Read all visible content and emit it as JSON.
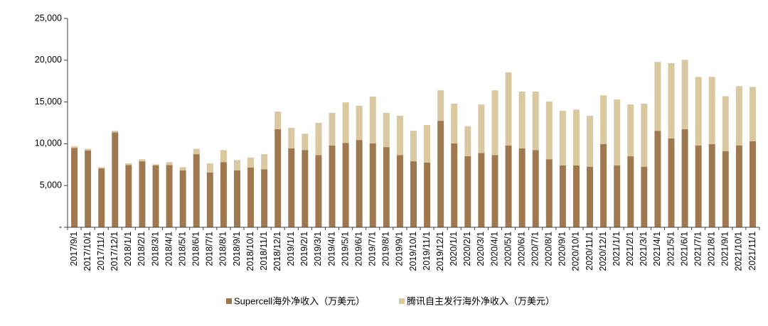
{
  "chart_data": {
    "type": "bar",
    "stacked": true,
    "categories": [
      "2017/9/1",
      "2017/10/1",
      "2017/11/1",
      "2017/12/1",
      "2018/1/1",
      "2018/2/1",
      "2018/3/1",
      "2018/4/1",
      "2018/5/1",
      "2018/6/1",
      "2018/7/1",
      "2018/8/1",
      "2018/9/1",
      "2018/10/1",
      "2018/11/1",
      "2018/12/1",
      "2019/1/1",
      "2019/2/1",
      "2019/3/1",
      "2019/4/1",
      "2019/5/1",
      "2019/6/1",
      "2019/7/1",
      "2019/8/1",
      "2019/9/1",
      "2019/10/1",
      "2019/11/1",
      "2019/12/1",
      "2020/1/1",
      "2020/2/1",
      "2020/3/1",
      "2020/4/1",
      "2020/5/1",
      "2020/6/1",
      "2020/7/1",
      "2020/8/1",
      "2020/9/1",
      "2020/10/1",
      "2020/11/1",
      "2020/12/1",
      "2021/1/1",
      "2021/2/1",
      "2021/3/1",
      "2021/4/1",
      "2021/5/1",
      "2021/6/1",
      "2021/7/1",
      "2021/8/1",
      "2021/9/1",
      "2021/10/1",
      "2021/11/1"
    ],
    "series": [
      {
        "name": "Supercell海外净收入（万美元）",
        "color": "#a07850",
        "values": [
          9500,
          9200,
          7050,
          11350,
          7450,
          7900,
          7400,
          7450,
          6800,
          8750,
          6550,
          7800,
          6800,
          7150,
          6950,
          11750,
          9450,
          9250,
          8650,
          9800,
          10100,
          10450,
          10050,
          9600,
          8650,
          7900,
          7750,
          12750,
          10050,
          8500,
          8900,
          8650,
          9800,
          9450,
          9250,
          8150,
          7400,
          7400,
          7250,
          9950,
          7400,
          8500,
          7250,
          11550,
          10650,
          11750,
          9800,
          9950,
          9100,
          9800,
          10300
        ]
      },
      {
        "name": "腾讯自主发行海外净收入（万美元）",
        "color": "#dac8a0",
        "values": [
          200,
          200,
          150,
          200,
          200,
          250,
          150,
          350,
          400,
          650,
          1100,
          1450,
          1250,
          1200,
          1800,
          2100,
          2450,
          1950,
          3850,
          3900,
          4850,
          4100,
          5600,
          4100,
          4700,
          3650,
          4500,
          3650,
          4750,
          3600,
          5800,
          7750,
          8750,
          6800,
          7000,
          6900,
          6550,
          6700,
          6100,
          5850,
          7900,
          6200,
          7550,
          8250,
          9000,
          8300,
          8200,
          8050,
          6600,
          7100,
          6500
        ]
      }
    ],
    "ylim": [
      0,
      25000
    ],
    "yticks": [
      0,
      5000,
      10000,
      15000,
      20000,
      25000
    ],
    "ytick_labels": [
      "-",
      "5,000",
      "10,000",
      "15,000",
      "20,000",
      "25,000"
    ],
    "grid": false,
    "legend": "bottom-center"
  }
}
